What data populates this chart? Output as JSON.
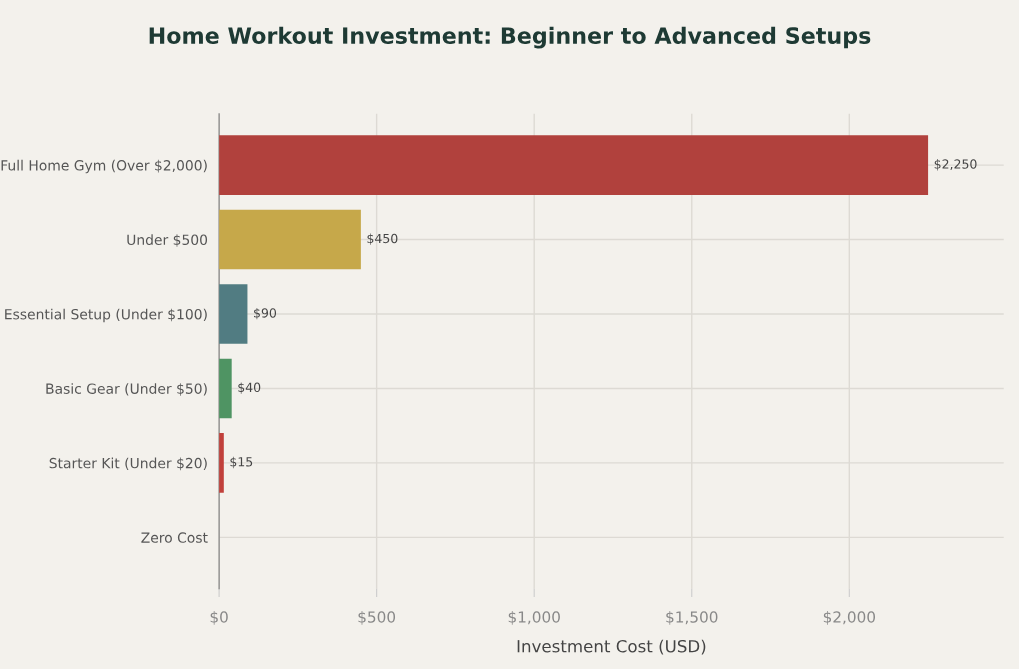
{
  "chart_data": {
    "type": "bar",
    "orientation": "horizontal",
    "title": "Home Workout Investment: Beginner to Advanced Setups",
    "xlabel": "Investment Cost (USD)",
    "categories": [
      "Full Home Gym (Over $2,000)",
      "Under $500",
      "Essential Setup (Under $100)",
      "Basic Gear (Under $50)",
      "Starter Kit (Under $20)",
      "Zero Cost"
    ],
    "values": [
      2250,
      450,
      90,
      40,
      15,
      0
    ],
    "value_labels": [
      "$2,250",
      "$450",
      "$90",
      "$40",
      "$15",
      null
    ],
    "colors": [
      "#b1413d",
      "#c6a84a",
      "#517c82",
      "#4f9463",
      "#c1403b",
      "#999999"
    ],
    "xlim": [
      0,
      2490
    ],
    "xticks": [
      {
        "value": 0,
        "label": "$0"
      },
      {
        "value": 500,
        "label": "$500"
      },
      {
        "value": 1000,
        "label": "$1,000"
      },
      {
        "value": 1500,
        "label": "$1,500"
      },
      {
        "value": 2000,
        "label": "$2,000"
      }
    ],
    "grid": true
  }
}
